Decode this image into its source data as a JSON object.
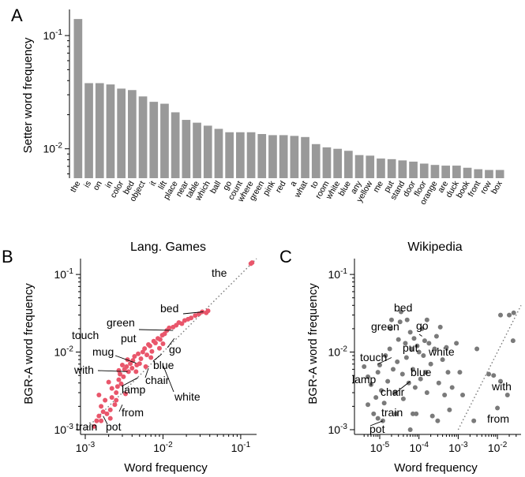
{
  "panels": {
    "A": {
      "letter": "A"
    },
    "B": {
      "letter": "B"
    },
    "C": {
      "letter": "C"
    }
  },
  "chart_data": [
    {
      "id": "A",
      "type": "bar",
      "title": "",
      "xlabel": "",
      "ylabel": "Setter word frequency",
      "yscale": "log",
      "ylim": [
        0.0055,
        0.17
      ],
      "yticks": [
        {
          "v": 0.1,
          "label": "10^-1"
        },
        {
          "v": 0.01,
          "label": "10^-2"
        }
      ],
      "bar_color": "#999999",
      "categories": [
        "the",
        "is",
        "on",
        "in",
        "color",
        "bed",
        "object",
        "it",
        "lift",
        "place",
        "near",
        "table",
        "which",
        "ball",
        "go",
        "count",
        "where",
        "green",
        "pink",
        "red",
        "a",
        "what",
        "to",
        "room",
        "white",
        "blue",
        "any",
        "yellow",
        "me",
        "put",
        "stand",
        "door",
        "floor",
        "orange",
        "are",
        "duck",
        "book",
        "front",
        "row",
        "box"
      ],
      "values": [
        0.14,
        0.038,
        0.038,
        0.037,
        0.034,
        0.033,
        0.029,
        0.026,
        0.025,
        0.021,
        0.018,
        0.017,
        0.016,
        0.015,
        0.014,
        0.014,
        0.014,
        0.0135,
        0.0132,
        0.0132,
        0.013,
        0.0127,
        0.011,
        0.0103,
        0.01,
        0.0096,
        0.0088,
        0.0087,
        0.0082,
        0.0081,
        0.0079,
        0.0077,
        0.0074,
        0.0072,
        0.0071,
        0.0071,
        0.0068,
        0.0066,
        0.0065,
        0.0065
      ]
    },
    {
      "id": "B",
      "type": "scatter",
      "title": "Lang. Games",
      "xlabel": "Word frequency",
      "ylabel": "BGR-A word frequency",
      "xscale": "log",
      "yscale": "log",
      "xlim": [
        0.001,
        0.16
      ],
      "ylim": [
        0.001,
        0.16
      ],
      "xticks": [
        {
          "v": 0.001,
          "label": "10^-3"
        },
        {
          "v": 0.01,
          "label": "10^-2"
        },
        {
          "v": 0.1,
          "label": "10^-1"
        }
      ],
      "yticks": [
        {
          "v": 0.001,
          "label": "10^-3"
        },
        {
          "v": 0.01,
          "label": "10^-2"
        },
        {
          "v": 0.1,
          "label": "10^-1"
        }
      ],
      "diagonal": true,
      "point_color": "#e9566b",
      "points": [
        [
          0.0013,
          0.0011
        ],
        [
          0.0014,
          0.0013
        ],
        [
          0.0015,
          0.0015
        ],
        [
          0.0016,
          0.0013
        ],
        [
          0.0017,
          0.0017
        ],
        [
          0.0016,
          0.002
        ],
        [
          0.0019,
          0.0016
        ],
        [
          0.0021,
          0.0014
        ],
        [
          0.0021,
          0.0018
        ],
        [
          0.0018,
          0.0024
        ],
        [
          0.0022,
          0.0026
        ],
        [
          0.0024,
          0.0021
        ],
        [
          0.0025,
          0.003
        ],
        [
          0.0022,
          0.0034
        ],
        [
          0.0026,
          0.0036
        ],
        [
          0.0027,
          0.0044
        ],
        [
          0.0029,
          0.0039
        ],
        [
          0.0028,
          0.0052
        ],
        [
          0.0031,
          0.0048
        ],
        [
          0.0032,
          0.006
        ],
        [
          0.003,
          0.0068
        ],
        [
          0.0034,
          0.0065
        ],
        [
          0.0036,
          0.0056
        ],
        [
          0.0038,
          0.0071
        ],
        [
          0.0035,
          0.008
        ],
        [
          0.0041,
          0.0078
        ],
        [
          0.0043,
          0.0088
        ],
        [
          0.004,
          0.0062
        ],
        [
          0.0046,
          0.0068
        ],
        [
          0.0048,
          0.0095
        ],
        [
          0.0052,
          0.0082
        ],
        [
          0.0055,
          0.01
        ],
        [
          0.0058,
          0.0111
        ],
        [
          0.0062,
          0.0092
        ],
        [
          0.0065,
          0.0125
        ],
        [
          0.0068,
          0.012
        ],
        [
          0.0072,
          0.0102
        ],
        [
          0.0076,
          0.0138
        ],
        [
          0.008,
          0.0131
        ],
        [
          0.0086,
          0.015
        ],
        [
          0.0092,
          0.0145
        ],
        [
          0.0098,
          0.0165
        ],
        [
          0.0105,
          0.0172
        ],
        [
          0.0112,
          0.019
        ],
        [
          0.012,
          0.0205
        ],
        [
          0.0135,
          0.021
        ],
        [
          0.0148,
          0.0222
        ],
        [
          0.016,
          0.024
        ],
        [
          0.0175,
          0.0232
        ],
        [
          0.019,
          0.0255
        ],
        [
          0.021,
          0.0265
        ],
        [
          0.023,
          0.0275
        ],
        [
          0.026,
          0.0295
        ],
        [
          0.029,
          0.031
        ],
        [
          0.032,
          0.033
        ],
        [
          0.036,
          0.032
        ],
        [
          0.038,
          0.034
        ],
        [
          0.0015,
          0.0028
        ],
        [
          0.002,
          0.0041
        ],
        [
          0.0025,
          0.0024
        ],
        [
          0.0033,
          0.0029
        ],
        [
          0.0027,
          0.0058
        ],
        [
          0.0045,
          0.0056
        ],
        [
          0.005,
          0.0071
        ],
        [
          0.006,
          0.0065
        ],
        [
          0.007,
          0.0085
        ],
        [
          0.009,
          0.0112
        ],
        [
          0.01,
          0.0128
        ],
        [
          0.14,
          0.142
        ],
        [
          0.135,
          0.138
        ]
      ],
      "labels": [
        {
          "text": "the",
          "x": 0.14,
          "y": 0.14
        },
        {
          "text": "bed",
          "x": 0.033,
          "y": 0.033
        },
        {
          "text": "green",
          "x": 0.0135,
          "y": 0.019
        },
        {
          "text": "put",
          "x": 0.0081,
          "y": 0.0125
        },
        {
          "text": "go",
          "x": 0.014,
          "y": 0.015
        },
        {
          "text": "touch",
          "x": 0.005,
          "y": 0.0085
        },
        {
          "text": "mug",
          "x": 0.0045,
          "y": 0.0072
        },
        {
          "text": "blue",
          "x": 0.0096,
          "y": 0.0094
        },
        {
          "text": "with",
          "x": 0.0035,
          "y": 0.0056
        },
        {
          "text": "chair",
          "x": 0.0065,
          "y": 0.0062
        },
        {
          "text": "lamp",
          "x": 0.0048,
          "y": 0.0047
        },
        {
          "text": "white",
          "x": 0.01,
          "y": 0.0068
        },
        {
          "text": "from",
          "x": 0.003,
          "y": 0.0021
        },
        {
          "text": "train",
          "x": 0.0015,
          "y": 0.0015
        },
        {
          "text": "pot",
          "x": 0.0017,
          "y": 0.0015
        }
      ]
    },
    {
      "id": "C",
      "type": "scatter",
      "title": "Wikipedia",
      "xlabel": "Word frequency",
      "ylabel": "BGR-A word frequency",
      "xscale": "log",
      "yscale": "log",
      "xlim": [
        3e-06,
        0.04
      ],
      "ylim": [
        0.001,
        0.16
      ],
      "xticks": [
        {
          "v": 1e-05,
          "label": "10^-5"
        },
        {
          "v": 0.0001,
          "label": "10^-4"
        },
        {
          "v": 0.001,
          "label": "10^-3"
        },
        {
          "v": 0.01,
          "label": "10^-2"
        }
      ],
      "yticks": [
        {
          "v": 0.001,
          "label": "10^-3"
        },
        {
          "v": 0.01,
          "label": "10^-2"
        },
        {
          "v": 0.1,
          "label": "10^-1"
        }
      ],
      "diagonal": true,
      "point_color": "#7a7a7a",
      "points": [
        [
          4e-06,
          0.0065
        ],
        [
          5e-06,
          0.0048
        ],
        [
          6e-06,
          0.0038
        ],
        [
          5e-06,
          0.0021
        ],
        [
          7e-06,
          0.0016
        ],
        [
          8e-06,
          0.0026
        ],
        [
          9e-06,
          0.0055
        ],
        [
          1e-05,
          0.0068
        ],
        [
          1.1e-05,
          0.0032
        ],
        [
          1.2e-05,
          0.0013
        ],
        [
          1.3e-05,
          0.0022
        ],
        [
          1.4e-05,
          0.009
        ],
        [
          1.6e-05,
          0.0042
        ],
        [
          1.8e-05,
          0.011
        ],
        [
          1.9e-05,
          0.02
        ],
        [
          2e-05,
          0.026
        ],
        [
          2.2e-05,
          0.006
        ],
        [
          2.4e-05,
          0.003
        ],
        [
          2.6e-05,
          0.0016
        ],
        [
          2.8e-05,
          0.0075
        ],
        [
          3e-05,
          0.0145
        ],
        [
          3.3e-05,
          0.0245
        ],
        [
          3.5e-05,
          0.033
        ],
        [
          3.8e-05,
          0.0052
        ],
        [
          4e-05,
          0.0025
        ],
        [
          4.5e-05,
          0.013
        ],
        [
          4.8e-05,
          0.0085
        ],
        [
          5e-05,
          0.026
        ],
        [
          5.5e-05,
          0.004
        ],
        [
          6e-05,
          0.018
        ],
        [
          6.5e-05,
          0.011
        ],
        [
          7e-05,
          0.006
        ],
        [
          7.5e-05,
          0.015
        ],
        [
          8e-05,
          0.0035
        ],
        [
          8.5e-05,
          0.0016
        ],
        [
          9e-05,
          0.012
        ],
        [
          0.0001,
          0.01
        ],
        [
          0.00011,
          0.0045
        ],
        [
          0.00012,
          0.02
        ],
        [
          0.00013,
          0.009
        ],
        [
          0.00014,
          0.014
        ],
        [
          0.00015,
          0.0055
        ],
        [
          0.00016,
          0.003
        ],
        [
          0.00018,
          0.013
        ],
        [
          0.0002,
          0.007
        ],
        [
          0.00022,
          0.0015
        ],
        [
          0.00025,
          0.011
        ],
        [
          0.00028,
          0.016
        ],
        [
          0.00032,
          0.004
        ],
        [
          0.00035,
          0.021
        ],
        [
          0.0004,
          0.008
        ],
        [
          0.00045,
          0.0028
        ],
        [
          0.0005,
          0.0115
        ],
        [
          0.00055,
          0.0055
        ],
        [
          0.0006,
          0.0018
        ],
        [
          0.0007,
          0.0035
        ],
        [
          0.0009,
          0.013
        ],
        [
          0.0011,
          0.0055
        ],
        [
          0.0013,
          0.0028
        ],
        [
          7e-05,
          0.0016
        ],
        [
          0.0025,
          0.0013
        ],
        [
          0.006,
          0.0052
        ],
        [
          0.008,
          0.005
        ],
        [
          0.01,
          0.0019
        ],
        [
          0.012,
          0.0042
        ],
        [
          0.018,
          0.0028
        ],
        [
          0.02,
          0.03
        ],
        [
          0.026,
          0.032
        ],
        [
          0.025,
          0.014
        ],
        [
          0.012,
          0.03
        ],
        [
          9e-06,
          0.0014
        ],
        [
          6e-05,
          0.001
        ],
        [
          0.0003,
          0.0013
        ],
        [
          0.003,
          0.011
        ],
        [
          0.00016,
          0.026
        ]
      ],
      "labels": [
        {
          "text": "bed",
          "x": 5e-05,
          "y": 0.026
        },
        {
          "text": "green",
          "x": 8e-05,
          "y": 0.018
        },
        {
          "text": "go",
          "x": 0.00012,
          "y": 0.016
        },
        {
          "text": "put",
          "x": 0.00014,
          "y": 0.011
        },
        {
          "text": "white",
          "x": 0.00018,
          "y": 0.013
        },
        {
          "text": "touch",
          "x": 2e-05,
          "y": 0.0085
        },
        {
          "text": "blue",
          "x": 0.00012,
          "y": 0.008
        },
        {
          "text": "lamp",
          "x": 8e-06,
          "y": 0.0055
        },
        {
          "text": "chair",
          "x": 6e-05,
          "y": 0.0042
        },
        {
          "text": "with",
          "x": 0.008,
          "y": 0.005
        },
        {
          "text": "train",
          "x": 5e-05,
          "y": 0.0018
        },
        {
          "text": "from",
          "x": 0.01,
          "y": 0.0019
        },
        {
          "text": "pot",
          "x": 1.2e-05,
          "y": 0.0013
        }
      ]
    }
  ]
}
